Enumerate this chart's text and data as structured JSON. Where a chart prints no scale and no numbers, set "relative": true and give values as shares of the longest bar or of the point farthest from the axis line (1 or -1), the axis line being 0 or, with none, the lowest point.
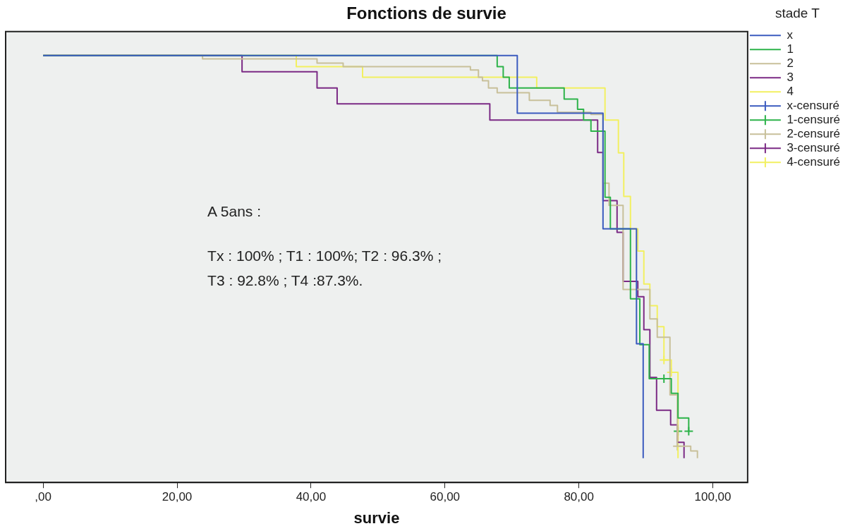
{
  "chart_data": {
    "type": "step",
    "title": "Fonctions de survie",
    "xlabel": "survie",
    "legend_title": "stade T",
    "legend": "right",
    "grid": false,
    "relative": true,
    "marker": "none",
    "xlim": [
      -5.6,
      105.2
    ],
    "xticks": [
      {
        "value": 0,
        "label": ",00"
      },
      {
        "value": 20,
        "label": "20,00"
      },
      {
        "value": 40,
        "label": "40,00"
      },
      {
        "value": 60,
        "label": "60,00"
      },
      {
        "value": 80,
        "label": "80,00"
      },
      {
        "value": 100,
        "label": "100,00"
      }
    ],
    "annotations": [
      "A 5ans :",
      "Tx : 100% ; T1 : 100%; T2 : 96.3% ;",
      "T3 : 92.8% ; T4 :87.3%."
    ],
    "series": [
      {
        "name": "x",
        "color": "#3b5bbf",
        "x": [
          0,
          70.8,
          83.6,
          88.6,
          89.6
        ],
        "values": [
          1,
          0.865,
          0.594,
          0.325,
          0.057
        ]
      },
      {
        "name": "1",
        "color": "#2db34a",
        "x": [
          0,
          67.8,
          68.7,
          69.6,
          77.8,
          79.8,
          80.7,
          81.8,
          83.9,
          84.7,
          87.7,
          89.1,
          90.5,
          93.8,
          94.8,
          96.4
        ],
        "values": [
          1,
          0.974,
          0.949,
          0.924,
          0.898,
          0.874,
          0.849,
          0.823,
          0.668,
          0.594,
          0.43,
          0.323,
          0.243,
          0.209,
          0.151,
          0.12
        ]
      },
      {
        "name": "2",
        "color": "#c8c09a",
        "x": [
          0,
          23.8,
          40.9,
          44.8,
          63.8,
          65,
          65.6,
          66.5,
          67.8,
          72.6,
          75.7,
          76.8,
          81.8,
          83.6,
          84.5,
          86.6,
          90.6,
          91.7,
          93.6,
          94.7,
          96.7,
          97.7
        ],
        "values": [
          1,
          0.992,
          0.982,
          0.974,
          0.966,
          0.949,
          0.941,
          0.924,
          0.913,
          0.895,
          0.883,
          0.867,
          0.862,
          0.701,
          0.649,
          0.452,
          0.383,
          0.34,
          0.205,
          0.085,
          0.074,
          0.057
        ]
      },
      {
        "name": "3",
        "color": "#7b2a85",
        "x": [
          0,
          29.7,
          40.9,
          43.9,
          66.7,
          82.8,
          83.6,
          85.7,
          86.6,
          88.8,
          89.7,
          90.6,
          91.6,
          93.7,
          94.7,
          95.7
        ],
        "values": [
          1,
          0.962,
          0.924,
          0.887,
          0.849,
          0.773,
          0.66,
          0.586,
          0.471,
          0.435,
          0.358,
          0.246,
          0.169,
          0.135,
          0.094,
          0.057
        ]
      },
      {
        "name": "4",
        "color": "#f2f060",
        "x": [
          0,
          37.8,
          47.7,
          73.7,
          83.9,
          85.9,
          86.7,
          87.7,
          88.8,
          89.7,
          90.6,
          91.7,
          92.7,
          93.8,
          94.8
        ],
        "values": [
          1,
          0.974,
          0.949,
          0.924,
          0.849,
          0.772,
          0.67,
          0.594,
          0.542,
          0.465,
          0.414,
          0.365,
          0.287,
          0.258,
          0.057
        ]
      },
      {
        "name": "x-censuré",
        "type": "scatter",
        "marker": "cross",
        "color": "#3b5bbf"
      },
      {
        "name": "1-censuré",
        "type": "scatter",
        "marker": "cross",
        "color": "#2db34a",
        "x": [
          92.7,
          94.8,
          96.4
        ],
        "values": [
          0.243,
          0.12,
          0.12
        ]
      },
      {
        "name": "2-censuré",
        "type": "scatter",
        "marker": "cross",
        "color": "#c8c09a",
        "x": [
          94.7
        ],
        "values": [
          0.085
        ]
      },
      {
        "name": "3-censuré",
        "type": "scatter",
        "marker": "cross",
        "color": "#7b2a85"
      },
      {
        "name": "4-censuré",
        "type": "scatter",
        "marker": "cross",
        "color": "#f2f060",
        "x": [
          92.7,
          93.8
        ],
        "values": [
          0.287,
          0.258
        ]
      }
    ]
  }
}
